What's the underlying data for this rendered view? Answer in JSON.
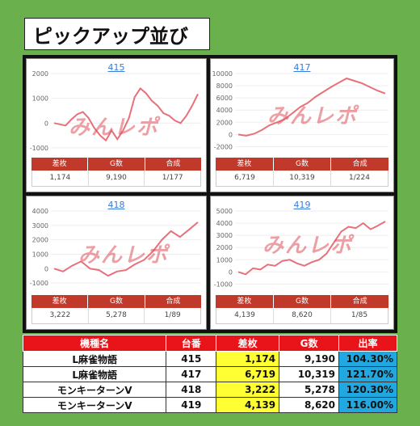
{
  "page_title": "ピックアップ並び",
  "watermark": "みんレポ",
  "panels": [
    {
      "id": "415",
      "yticks": [
        "2000",
        "1000",
        "0",
        "-1000"
      ],
      "y_values": [
        0,
        -50,
        -100,
        150,
        350,
        450,
        200,
        -200,
        -500,
        -700,
        -300,
        -650,
        -300,
        200,
        1050,
        1400,
        1200,
        900,
        700,
        400,
        300,
        100,
        0,
        300,
        700,
        1174
      ],
      "ylim": [
        -1200,
        2000
      ],
      "stats": {
        "headers": [
          "差枚",
          "G数",
          "合成"
        ],
        "values": [
          "1,174",
          "9,190",
          "1/177"
        ]
      }
    },
    {
      "id": "417",
      "yticks": [
        "10000",
        "8000",
        "6000",
        "4000",
        "2000",
        "0",
        "-2000"
      ],
      "y_values": [
        0,
        -200,
        100,
        700,
        1500,
        2000,
        2500,
        3500,
        4500,
        5200,
        6200,
        7000,
        7800,
        8500,
        9200,
        8800,
        8400,
        7800,
        7200,
        6719
      ],
      "ylim": [
        -3000,
        10000
      ],
      "stats": {
        "headers": [
          "差枚",
          "G数",
          "合成"
        ],
        "values": [
          "6,719",
          "10,319",
          "1/224"
        ]
      }
    },
    {
      "id": "418",
      "yticks": [
        "4000",
        "3000",
        "2000",
        "1000",
        "0",
        "-1000"
      ],
      "y_values": [
        0,
        -200,
        200,
        500,
        0,
        -100,
        -500,
        -200,
        -100,
        300,
        600,
        1200,
        2000,
        2600,
        2200,
        2700,
        3222
      ],
      "ylim": [
        -1500,
        4000
      ],
      "stats": {
        "headers": [
          "差枚",
          "G数",
          "合成"
        ],
        "values": [
          "3,222",
          "5,278",
          "1/89"
        ]
      }
    },
    {
      "id": "419",
      "yticks": [
        "5000",
        "4000",
        "3000",
        "2000",
        "1000",
        "0",
        "-1000"
      ],
      "y_values": [
        0,
        -200,
        300,
        200,
        600,
        500,
        900,
        1000,
        700,
        500,
        800,
        1000,
        1500,
        2400,
        3300,
        3700,
        3600,
        4000,
        3500,
        3800,
        4139
      ],
      "ylim": [
        -1500,
        5000
      ],
      "stats": {
        "headers": [
          "差枚",
          "G数",
          "合成"
        ],
        "values": [
          "4,139",
          "8,620",
          "1/85"
        ]
      }
    }
  ],
  "table": {
    "headers": [
      "機種名",
      "台番",
      "差枚",
      "G数",
      "出率"
    ],
    "rows": [
      [
        "L麻雀物語",
        "415",
        "1,174",
        "9,190",
        "104.30%"
      ],
      [
        "L麻雀物語",
        "417",
        "6,719",
        "10,319",
        "121.70%"
      ],
      [
        "モンキーターンV",
        "418",
        "3,222",
        "5,278",
        "120.30%"
      ],
      [
        "モンキーターンV",
        "419",
        "4,139",
        "8,620",
        "116.00%"
      ]
    ]
  },
  "colors": {
    "background": "#6ab04c",
    "line": "#e8707a",
    "header_red": "#e8141a",
    "highlight_yellow": "#ffff33",
    "highlight_blue": "#22a8e0"
  }
}
